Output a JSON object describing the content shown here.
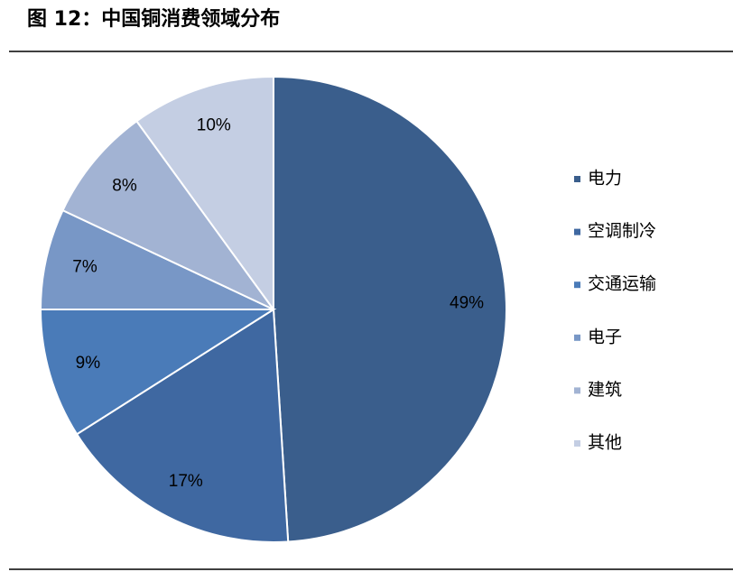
{
  "chart_data": {
    "type": "pie",
    "title": "图 12：中国铜消费领域分布",
    "categories": [
      "电力",
      "空调制冷",
      "交通运输",
      "电子",
      "建筑",
      "其他"
    ],
    "values": [
      49,
      17,
      9,
      7,
      8,
      10
    ],
    "value_labels": [
      "49%",
      "17%",
      "9%",
      "7%",
      "8%",
      "10%"
    ],
    "colors": [
      "#3a5e8c",
      "#3f68a1",
      "#4a7bb8",
      "#7897c6",
      "#a2b3d3",
      "#c4cee3"
    ],
    "legend": "right"
  }
}
